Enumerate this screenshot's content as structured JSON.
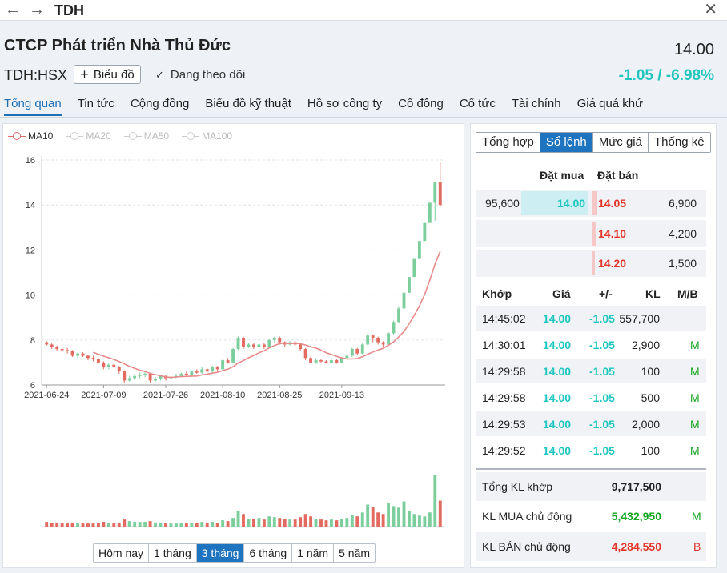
{
  "header": {
    "back_glyph": "←",
    "forward_glyph": "→",
    "symbol": "TDH",
    "close_glyph": "✕"
  },
  "stock": {
    "company_name": "CTCP Phát triển Nhà Thủ Đức",
    "price": "14.00",
    "ticker": "TDH:HSX",
    "chart_button": "Biểu đồ",
    "follow_label": "Đang theo dõi",
    "change": "-1.05 / -6.98%",
    "change_color": "#22c5bf"
  },
  "tabs": [
    "Tổng quan",
    "Tin tức",
    "Cộng đồng",
    "Biểu đồ kỹ thuật",
    "Hồ sơ công ty",
    "Cổ đông",
    "Cổ tức",
    "Tài chính",
    "Giá quá khứ"
  ],
  "legend": [
    "MA10",
    "MA20",
    "MA50",
    "MA100"
  ],
  "ranges": [
    "Hôm nay",
    "1 tháng",
    "3 tháng",
    "6 tháng",
    "1 năm",
    "5 năm"
  ],
  "chart_data": {
    "type": "candlestick",
    "y_ticks": [
      "6",
      "8",
      "10",
      "12",
      "14",
      "16"
    ],
    "ylim": [
      6,
      16
    ],
    "x_ticks": [
      "2021-06-24",
      "2021-07-09",
      "2021-07-26",
      "2021-08-10",
      "2021-08-25",
      "2021-09-13"
    ],
    "up_color": "#7ccf9c",
    "down_color": "#e26a5e",
    "ma10_color": "#e88a8a",
    "candles": [
      [
        7.9,
        7.8,
        7.95,
        7.75
      ],
      [
        7.8,
        7.7,
        7.85,
        7.6
      ],
      [
        7.7,
        7.6,
        7.75,
        7.5
      ],
      [
        7.6,
        7.55,
        7.7,
        7.45
      ],
      [
        7.55,
        7.5,
        7.65,
        7.4
      ],
      [
        7.5,
        7.3,
        7.55,
        7.25
      ],
      [
        7.3,
        7.4,
        7.45,
        7.2
      ],
      [
        7.4,
        7.3,
        7.45,
        7.25
      ],
      [
        7.3,
        7.2,
        7.35,
        7.1
      ],
      [
        7.2,
        7.15,
        7.3,
        7.05
      ],
      [
        7.15,
        7.0,
        7.2,
        6.95
      ],
      [
        7.0,
        6.8,
        7.05,
        6.7
      ],
      [
        6.8,
        6.9,
        6.95,
        6.7
      ],
      [
        6.9,
        6.8,
        6.95,
        6.75
      ],
      [
        6.8,
        6.6,
        6.85,
        6.5
      ],
      [
        6.6,
        6.2,
        6.65,
        6.1
      ],
      [
        6.2,
        6.3,
        6.4,
        6.15
      ],
      [
        6.3,
        6.4,
        6.5,
        6.2
      ],
      [
        6.4,
        6.45,
        6.55,
        6.3
      ],
      [
        6.45,
        6.5,
        6.6,
        6.35
      ],
      [
        6.5,
        6.2,
        6.55,
        6.1
      ],
      [
        6.2,
        6.25,
        6.35,
        6.15
      ],
      [
        6.25,
        6.4,
        6.45,
        6.2
      ],
      [
        6.4,
        6.3,
        6.45,
        6.2
      ],
      [
        6.3,
        6.35,
        6.45,
        6.25
      ],
      [
        6.35,
        6.4,
        6.5,
        6.3
      ],
      [
        6.4,
        6.5,
        6.55,
        6.35
      ],
      [
        6.5,
        6.45,
        6.6,
        6.4
      ],
      [
        6.45,
        6.6,
        6.65,
        6.4
      ],
      [
        6.6,
        6.55,
        6.7,
        6.5
      ],
      [
        6.55,
        6.7,
        6.8,
        6.5
      ],
      [
        6.7,
        6.6,
        6.75,
        6.55
      ],
      [
        6.6,
        6.8,
        6.85,
        6.55
      ],
      [
        6.8,
        6.7,
        6.85,
        6.6
      ],
      [
        6.7,
        7.1,
        7.15,
        6.65
      ],
      [
        7.1,
        7.0,
        7.2,
        6.95
      ],
      [
        7.0,
        7.6,
        7.65,
        6.95
      ],
      [
        7.6,
        8.1,
        8.15,
        7.55
      ],
      [
        8.1,
        7.7,
        8.15,
        7.6
      ],
      [
        7.7,
        7.8,
        7.85,
        7.65
      ],
      [
        7.8,
        7.7,
        7.85,
        7.6
      ],
      [
        7.7,
        7.8,
        7.9,
        7.65
      ],
      [
        7.8,
        7.7,
        7.85,
        7.6
      ],
      [
        7.7,
        8.0,
        8.05,
        7.65
      ],
      [
        8.0,
        8.1,
        8.15,
        7.9
      ],
      [
        8.1,
        7.9,
        8.15,
        7.8
      ],
      [
        7.9,
        7.8,
        7.95,
        7.7
      ],
      [
        7.8,
        7.9,
        7.95,
        7.75
      ],
      [
        7.9,
        7.8,
        7.95,
        7.7
      ],
      [
        7.8,
        7.6,
        7.85,
        7.5
      ],
      [
        7.6,
        7.2,
        7.65,
        7.1
      ],
      [
        7.2,
        7.0,
        7.25,
        6.95
      ],
      [
        7.0,
        7.1,
        7.15,
        6.95
      ],
      [
        7.1,
        7.05,
        7.15,
        7.0
      ],
      [
        7.05,
        7.0,
        7.1,
        6.95
      ],
      [
        7.0,
        7.1,
        7.15,
        6.95
      ],
      [
        7.1,
        7.0,
        7.15,
        6.95
      ],
      [
        7.0,
        7.2,
        7.25,
        6.95
      ],
      [
        7.2,
        7.3,
        7.35,
        7.15
      ],
      [
        7.3,
        7.6,
        7.65,
        7.25
      ],
      [
        7.6,
        7.4,
        7.65,
        7.35
      ],
      [
        7.4,
        7.8,
        7.85,
        7.35
      ],
      [
        7.8,
        8.2,
        8.3,
        7.75
      ],
      [
        8.2,
        8.1,
        8.25,
        7.9
      ],
      [
        8.1,
        7.9,
        8.15,
        7.8
      ],
      [
        7.9,
        7.8,
        7.95,
        7.7
      ],
      [
        7.8,
        8.3,
        8.35,
        7.75
      ],
      [
        8.3,
        8.8,
        8.85,
        8.25
      ],
      [
        8.8,
        9.4,
        9.5,
        8.75
      ],
      [
        9.4,
        10.1,
        10.1,
        9.4
      ],
      [
        10.1,
        10.8,
        10.8,
        10.1
      ],
      [
        10.8,
        11.6,
        11.6,
        10.8
      ],
      [
        11.6,
        12.4,
        12.4,
        11.6
      ],
      [
        12.4,
        13.2,
        13.2,
        12.4
      ],
      [
        13.2,
        14.1,
        14.1,
        13.2
      ],
      [
        14.1,
        15.0,
        15.0,
        13.3
      ],
      [
        15.0,
        14.0,
        15.9,
        13.9
      ]
    ],
    "volumes": [
      0.6,
      0.5,
      0.5,
      0.4,
      0.4,
      0.5,
      0.4,
      0.4,
      0.4,
      0.4,
      0.5,
      0.6,
      0.5,
      0.5,
      0.5,
      0.9,
      0.7,
      0.6,
      0.6,
      0.6,
      0.7,
      0.5,
      0.5,
      0.5,
      0.4,
      0.4,
      0.5,
      0.5,
      0.5,
      0.5,
      0.6,
      0.5,
      0.6,
      0.5,
      0.8,
      0.7,
      1.1,
      2.0,
      1.6,
      1.0,
      1.0,
      1.1,
      0.9,
      1.3,
      1.2,
      1.1,
      1.0,
      0.9,
      0.9,
      1.2,
      1.6,
      1.3,
      1.0,
      0.9,
      0.8,
      0.9,
      0.8,
      1.0,
      1.1,
      1.5,
      1.3,
      1.8,
      2.8,
      2.5,
      1.8,
      1.6,
      3.0,
      2.6,
      2.4,
      3.2,
      2.0,
      1.6,
      1.4,
      1.3,
      1.8,
      6.5,
      3.3
    ]
  },
  "orderbook": {
    "tabs": [
      "Tổng hợp",
      "Sổ lệnh",
      "Mức giá",
      "Thống kê"
    ],
    "bid_header": "Đặt mua",
    "ask_header": "Đặt bán",
    "rows": [
      {
        "bid_vol": "95,600",
        "bid_price": "14.00",
        "ask_price": "14.05",
        "ask_vol": "6,900"
      },
      {
        "bid_vol": "",
        "bid_price": "",
        "ask_price": "14.10",
        "ask_vol": "4,200"
      },
      {
        "bid_vol": "",
        "bid_price": "",
        "ask_price": "14.20",
        "ask_vol": "1,500"
      }
    ]
  },
  "matches": {
    "headers": [
      "Khớp",
      "Giá",
      "+/-",
      "KL",
      "M/B"
    ],
    "rows": [
      {
        "time": "14:45:02",
        "price": "14.00",
        "change": "-1.05",
        "vol": "557,700",
        "side": ""
      },
      {
        "time": "14:30:01",
        "price": "14.00",
        "change": "-1.05",
        "vol": "2,900",
        "side": "M"
      },
      {
        "time": "14:29:58",
        "price": "14.00",
        "change": "-1.05",
        "vol": "100",
        "side": "M"
      },
      {
        "time": "14:29:58",
        "price": "14.00",
        "change": "-1.05",
        "vol": "500",
        "side": "M"
      },
      {
        "time": "14:29:53",
        "price": "14.00",
        "change": "-1.05",
        "vol": "2,000",
        "side": "M"
      },
      {
        "time": "14:29:52",
        "price": "14.00",
        "change": "-1.05",
        "vol": "100",
        "side": "M"
      }
    ]
  },
  "summary": {
    "total_label": "Tổng KL khớp",
    "total_value": "9,717,500",
    "buy_label": "KL MUA chủ động",
    "buy_value": "5,432,950",
    "buy_side": "M",
    "sell_label": "KL BÁN chủ động",
    "sell_value": "4,284,550",
    "sell_side": "B"
  }
}
